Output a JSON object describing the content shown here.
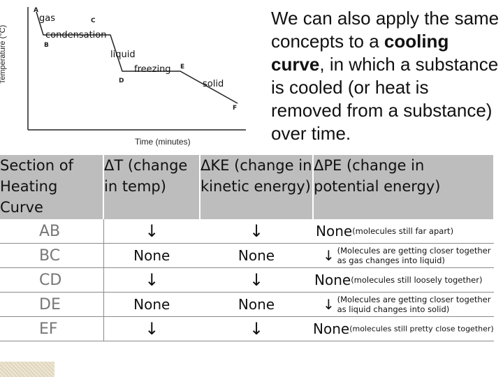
{
  "graph": {
    "y_axis_title": "Temperature (°C)",
    "x_axis_title": "Time (minutes)",
    "points": [
      "A",
      "B",
      "C",
      "D",
      "E",
      "F"
    ],
    "phase_labels": {
      "gas": "gas",
      "condensation": "condensation",
      "liquid": "liquid",
      "freezing": "freezing",
      "solid": "solid"
    }
  },
  "intro": {
    "before": "We can also apply the same concepts to a ",
    "bold": "cooling curve",
    "after": ", in which a substance is cooled (or heat is removed from a substance) over time."
  },
  "table": {
    "headers": [
      "Section of Heating Curve",
      "ΔT (change in temp)",
      "ΔKE (change in kinetic energy)",
      "ΔPE (change in potential energy)"
    ],
    "rows": [
      {
        "section": "AB",
        "dt": "↓",
        "dke": "↓",
        "dpe_main": "None",
        "dpe_note": "(molecules still far apart)"
      },
      {
        "section": "BC",
        "dt": "None",
        "dke": "None",
        "dpe_main": "↓",
        "dpe_note": "(Molecules are getting closer together as gas changes into liquid)"
      },
      {
        "section": "CD",
        "dt": "↓",
        "dke": "↓",
        "dpe_main": "None",
        "dpe_note": "(molecules still loosely together)"
      },
      {
        "section": "DE",
        "dt": "None",
        "dke": "None",
        "dpe_main": "↓",
        "dpe_note": "(Molecules are getting closer together as liquid changes into solid)"
      },
      {
        "section": "EF",
        "dt": "↓",
        "dke": "↓",
        "dpe_main": "None",
        "dpe_note": "(molecules still pretty close together)"
      }
    ]
  }
}
